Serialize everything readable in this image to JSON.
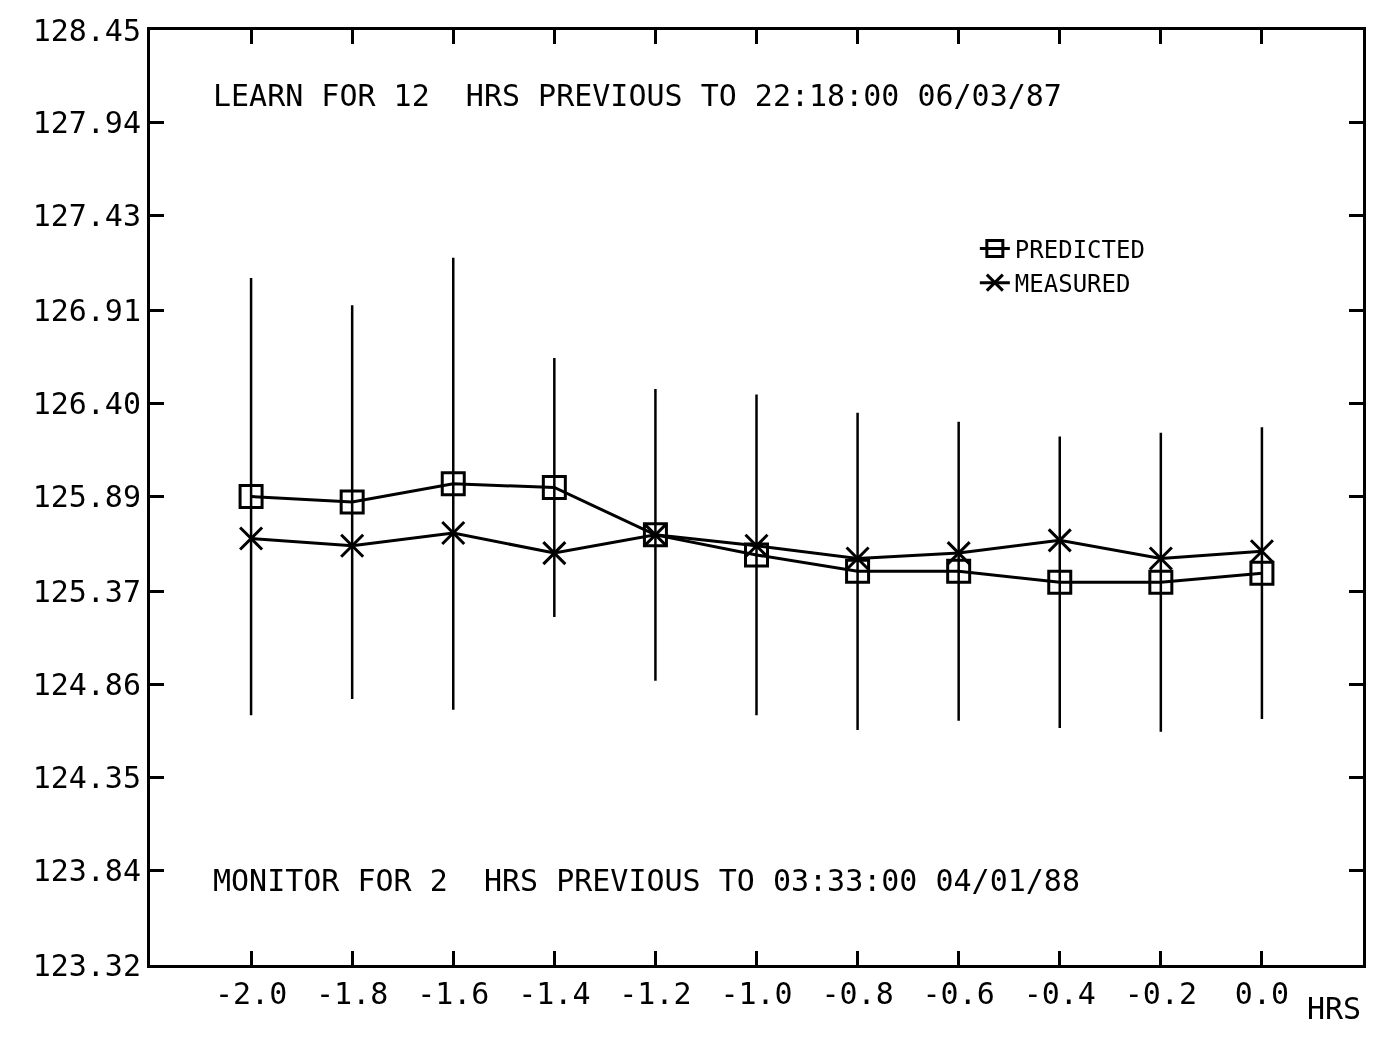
{
  "chart_data": {
    "type": "line",
    "xlabel": "HRS",
    "annotations": [
      "LEARN FOR 12  HRS PREVIOUS TO 22:18:00 06/03/87",
      "MONITOR FOR 2  HRS PREVIOUS TO 03:33:00 04/01/88"
    ],
    "x": [
      -2.0,
      -1.8,
      -1.6,
      -1.4,
      -1.2,
      -1.0,
      -0.8,
      -0.6,
      -0.4,
      -0.2,
      0.0
    ],
    "series": [
      {
        "name": "PREDICTED",
        "color": "#000000",
        "marker": "square",
        "values": [
          125.89,
          125.86,
          125.96,
          125.94,
          125.68,
          125.57,
          125.48,
          125.48,
          125.42,
          125.42,
          125.47
        ],
        "errors": [
          1.2,
          1.08,
          1.24,
          0.71,
          0.8,
          0.88,
          0.87,
          0.82,
          0.8,
          0.82,
          0.8
        ]
      },
      {
        "name": "MEASURED",
        "color": "#000000",
        "marker": "cross",
        "values": [
          125.66,
          125.62,
          125.69,
          125.58,
          125.68,
          125.62,
          125.55,
          125.58,
          125.65,
          125.55,
          125.59
        ]
      }
    ],
    "xlim": [
      -2.2,
      0.2
    ],
    "xticks": [
      {
        "value": -2.0,
        "label": "-2.0"
      },
      {
        "value": -1.8,
        "label": "-1.8"
      },
      {
        "value": -1.6,
        "label": "-1.6"
      },
      {
        "value": -1.4,
        "label": "-1.4"
      },
      {
        "value": -1.2,
        "label": "-1.2"
      },
      {
        "value": -1.0,
        "label": "-1.0"
      },
      {
        "value": -0.8,
        "label": "-0.8"
      },
      {
        "value": -0.6,
        "label": "-0.6"
      },
      {
        "value": -0.4,
        "label": "-0.4"
      },
      {
        "value": -0.2,
        "label": "-0.2"
      },
      {
        "value": 0.0,
        "label": "0.0"
      }
    ],
    "ylim": [
      123.32,
      128.45
    ],
    "yticks": [
      123.32,
      123.84,
      124.35,
      124.86,
      125.37,
      125.89,
      {
        "value": 126.4,
        "label": "126.40"
      },
      126.91,
      127.43,
      127.94,
      128.45
    ],
    "legend": "top right",
    "line_style": "solid"
  }
}
